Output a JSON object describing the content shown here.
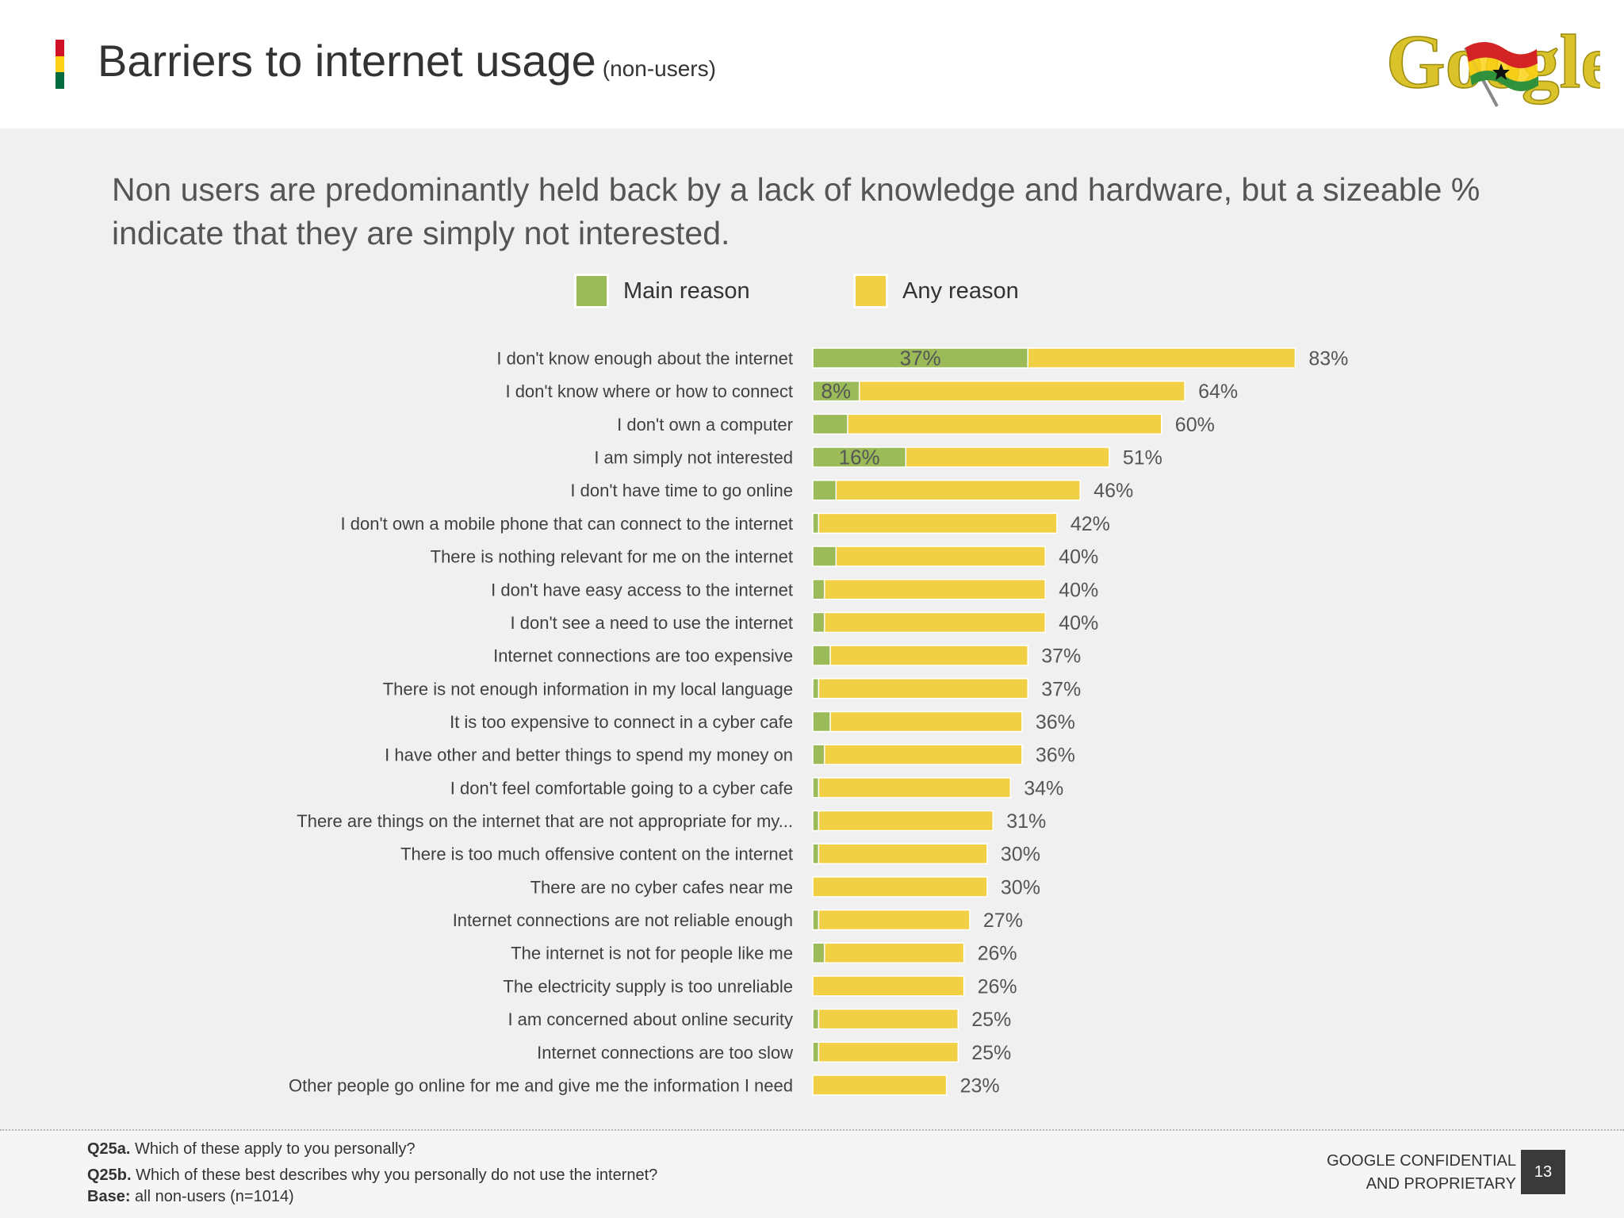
{
  "header": {
    "title": "Barriers to internet usage",
    "subtitle": "(non-users)",
    "flag_colors": [
      "#ce1126",
      "#fcd116",
      "#006b3f"
    ],
    "logo_text": "Google"
  },
  "headline": "Non users are predominantly held back by a lack of knowledge and hardware, but a sizeable % indicate that they are simply not interested.",
  "legend": {
    "main_label": "Main reason",
    "any_label": "Any reason",
    "main_color": "#9bbb59",
    "any_color": "#f2d046"
  },
  "chart_data": {
    "type": "bar",
    "orientation": "horizontal",
    "stacked": "overlay",
    "xlim": [
      0,
      100
    ],
    "categories": [
      "I don't know enough about the internet",
      "I don't know where or how to connect",
      "I don't own a computer",
      "I am simply not interested",
      "I don't have time to go online",
      "I don't own a mobile phone that can connect to the internet",
      "There is nothing relevant for me on the internet",
      "I don't have easy access to the internet",
      "I don't see a need to use the internet",
      "Internet connections are too expensive",
      "There is not enough information in my local language",
      "It is too expensive to connect in a cyber cafe",
      "I have other and better things to spend my money on",
      "I don't feel comfortable going to a cyber cafe",
      "There are things on the internet that are not appropriate for my...",
      "There is too much offensive content on the internet",
      "There are no cyber cafes near me",
      "Internet connections are not reliable enough",
      "The internet is not for people like me",
      "The electricity supply is too unreliable",
      "I am concerned about online security",
      "Internet connections are too slow",
      "Other people go online for me and give me the information I need"
    ],
    "series": [
      {
        "name": "Main reason",
        "values": [
          37,
          8,
          6,
          16,
          4,
          1,
          4,
          2,
          2,
          3,
          1,
          3,
          2,
          1,
          1,
          1,
          0,
          1,
          2,
          0,
          1,
          1,
          0
        ],
        "labels": [
          "37%",
          "8%",
          "",
          "16%",
          "",
          "",
          "",
          "",
          "",
          "",
          "",
          "",
          "",
          "",
          "",
          "",
          "",
          "",
          "",
          "",
          "",
          "",
          ""
        ]
      },
      {
        "name": "Any reason",
        "values": [
          83,
          64,
          60,
          51,
          46,
          42,
          40,
          40,
          40,
          37,
          37,
          36,
          36,
          34,
          31,
          30,
          30,
          27,
          26,
          26,
          25,
          25,
          23
        ],
        "labels": [
          "83%",
          "64%",
          "60%",
          "51%",
          "46%",
          "42%",
          "40%",
          "40%",
          "40%",
          "37%",
          "37%",
          "36%",
          "36%",
          "34%",
          "31%",
          "30%",
          "30%",
          "27%",
          "26%",
          "26%",
          "25%",
          "25%",
          "23%"
        ]
      }
    ]
  },
  "footer": {
    "q25a_key": "Q25a.",
    "q25a_text": "Which of these apply to you personally?",
    "q25b_key": "Q25b.",
    "q25b_text": "Which of these best describes why you personally do not use the internet?",
    "base_key": "Base:",
    "base_text": "all non-users (n=1014)",
    "confidential_line1": "GOOGLE CONFIDENTIAL",
    "confidential_line2": "AND PROPRIETARY",
    "page_number": "13"
  }
}
